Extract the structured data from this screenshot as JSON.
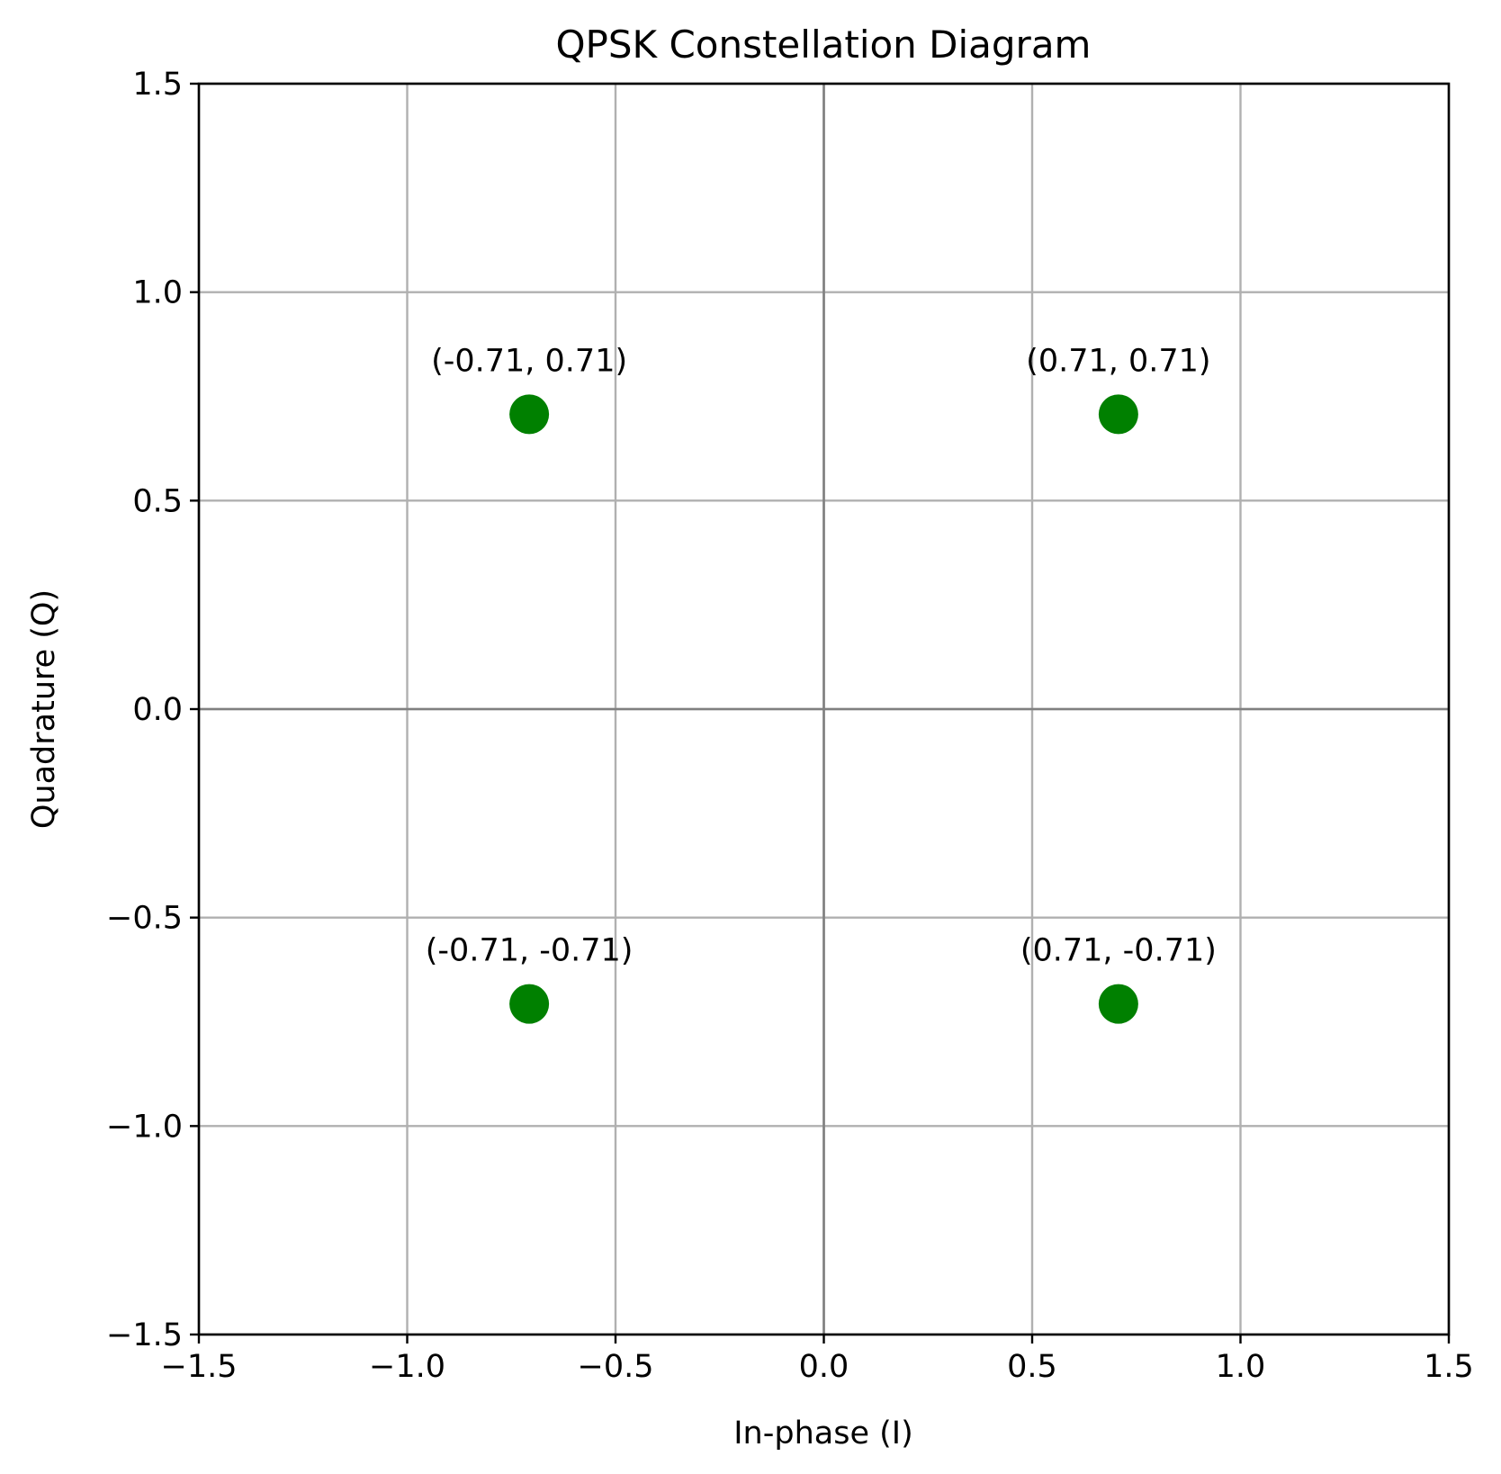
{
  "chart_data": {
    "type": "scatter",
    "title": "QPSK Constellation Diagram",
    "xlabel": "In-phase (I)",
    "ylabel": "Quadrature (Q)",
    "xlim": [
      -1.5,
      1.5
    ],
    "ylim": [
      -1.5,
      1.5
    ],
    "x_ticks": [
      -1.5,
      -1.0,
      -0.5,
      0.0,
      0.5,
      1.0,
      1.5
    ],
    "y_ticks": [
      -1.5,
      -1.0,
      -0.5,
      0.0,
      0.5,
      1.0,
      1.5
    ],
    "x_tick_labels": [
      "−1.5",
      "−1.0",
      "−0.5",
      "0.0",
      "0.5",
      "1.0",
      "1.5"
    ],
    "y_tick_labels": [
      "−1.5",
      "−1.0",
      "−0.5",
      "0.0",
      "0.5",
      "1.0",
      "1.5"
    ],
    "grid": true,
    "zero_lines": true,
    "marker_color": "#008000",
    "points": [
      {
        "x": 0.7071,
        "y": 0.7071,
        "label": "(0.71, 0.71)"
      },
      {
        "x": -0.7071,
        "y": 0.7071,
        "label": "(-0.71, 0.71)"
      },
      {
        "x": -0.7071,
        "y": -0.7071,
        "label": "(-0.71, -0.71)"
      },
      {
        "x": 0.7071,
        "y": -0.7071,
        "label": "(0.71, -0.71)"
      }
    ]
  }
}
